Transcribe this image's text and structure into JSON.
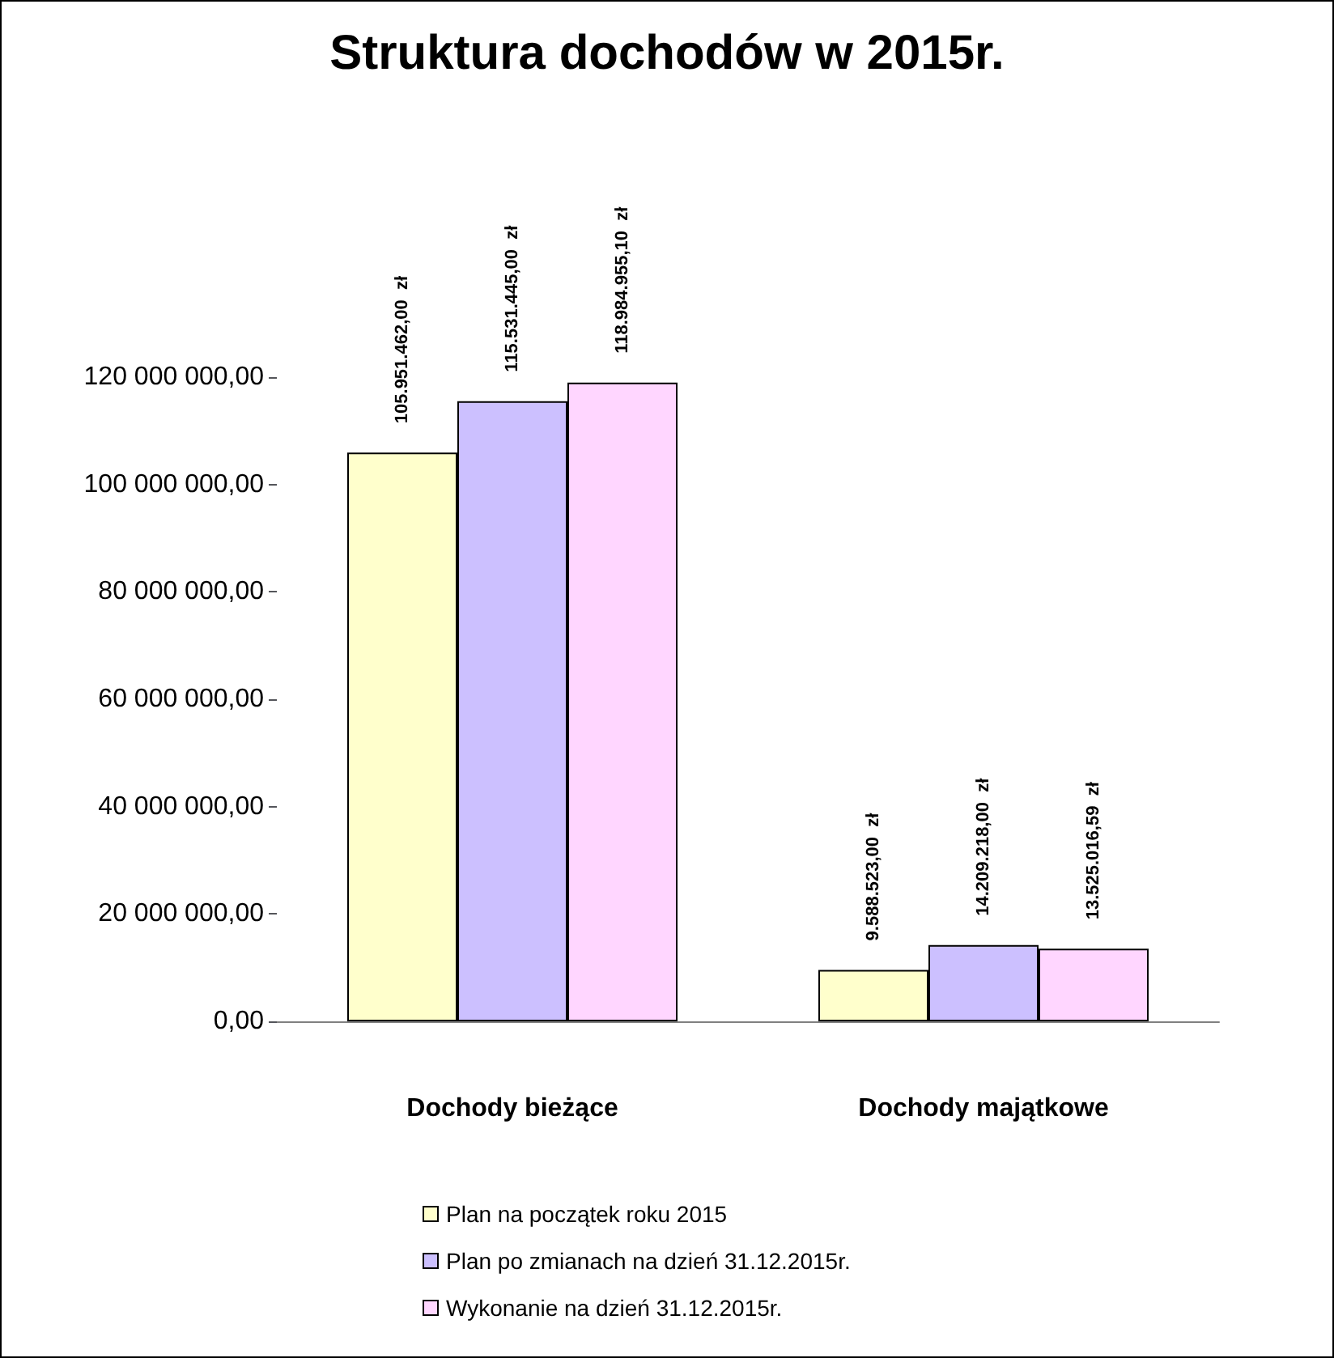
{
  "chart_data": {
    "type": "bar",
    "title": "Struktura dochodów w 2015r.",
    "categories": [
      "Dochody bieżące",
      "Dochody majątkowe"
    ],
    "series": [
      {
        "name": "Plan na początek roku 2015",
        "color": "#ffffcc",
        "values": [
          105951462.0,
          9588523.0
        ],
        "value_labels": [
          "105.951.462,00  zł",
          "9.588.523,00  zł"
        ]
      },
      {
        "name": "Plan po zmianach na dzień 31.12.2015r.",
        "color": "#ccc0ff",
        "values": [
          115531445.0,
          14209218.0
        ],
        "value_labels": [
          "115.531.445,00  zł",
          "14.209.218,00  zł"
        ]
      },
      {
        "name": "Wykonanie na dzień 31.12.2015r.",
        "color": "#ffd6ff",
        "values": [
          118984955.1,
          13525016.59
        ],
        "value_labels": [
          "118.984.955,10  zł",
          "13.525.016,59  zł"
        ]
      }
    ],
    "ylim": [
      0,
      120000000
    ],
    "yticks": [
      {
        "value": 0,
        "label": "0,00"
      },
      {
        "value": 20000000,
        "label": "20 000 000,00"
      },
      {
        "value": 40000000,
        "label": "40 000 000,00"
      },
      {
        "value": 60000000,
        "label": "60 000 000,00"
      },
      {
        "value": 80000000,
        "label": "80 000 000,00"
      },
      {
        "value": 100000000,
        "label": "100 000 000,00"
      },
      {
        "value": 120000000,
        "label": "120 000 000,00"
      }
    ],
    "grid": false,
    "legend": "bottom"
  }
}
